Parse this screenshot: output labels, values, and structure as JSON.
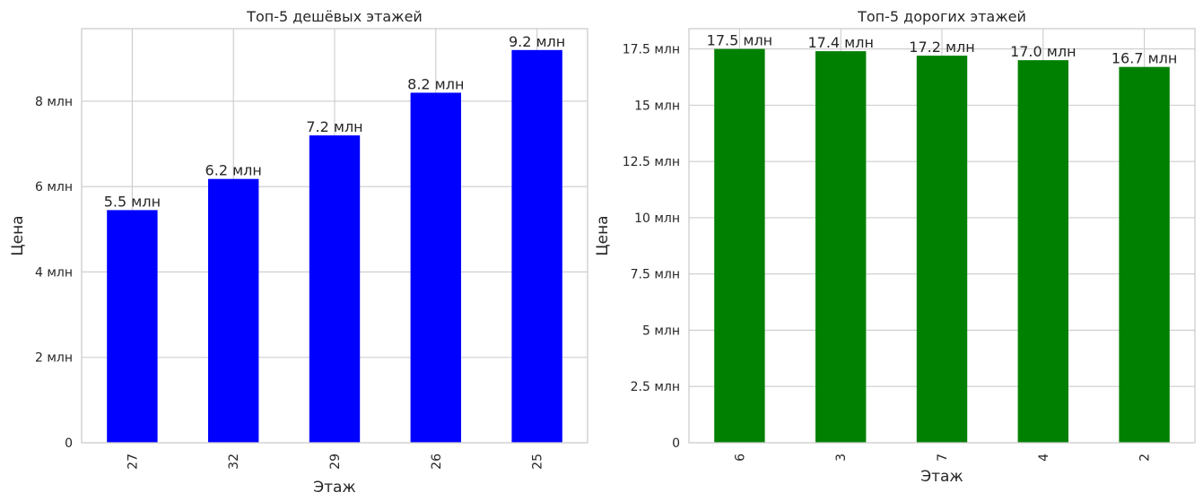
{
  "chart_data": [
    {
      "type": "bar",
      "title": "Топ-5 дешёвых этажей",
      "xlabel": "Этаж",
      "ylabel": "Цена",
      "categories": [
        "27",
        "32",
        "29",
        "26",
        "25"
      ],
      "values": [
        5.45,
        6.18,
        7.2,
        8.2,
        9.2
      ],
      "value_labels": [
        "5.5 млн",
        "6.2 млн",
        "7.2 млн",
        "8.2 млн",
        "9.2 млн"
      ],
      "ylim": [
        0,
        9.7
      ],
      "yticks": [
        0,
        2,
        4,
        6,
        8
      ],
      "ytick_labels": [
        "0",
        "2 млн",
        "4 млн",
        "6 млн",
        "8 млн"
      ],
      "color": "#0000ff",
      "grid": true
    },
    {
      "type": "bar",
      "title": "Топ-5 дорогих этажей",
      "xlabel": "Этаж",
      "ylabel": "Цена",
      "categories": [
        "6",
        "3",
        "7",
        "4",
        "2"
      ],
      "values": [
        17.5,
        17.4,
        17.2,
        17.0,
        16.7
      ],
      "value_labels": [
        "17.5 млн",
        "17.4 млн",
        "17.2 млн",
        "17.0 млн",
        "16.7 млн"
      ],
      "ylim": [
        0,
        18.4
      ],
      "yticks": [
        0,
        2.5,
        5,
        7.5,
        10,
        12.5,
        15,
        17.5
      ],
      "ytick_labels": [
        "0",
        "2.5 млн",
        "5 млн",
        "7.5 млн",
        "10 млн",
        "12.5 млн",
        "15 млн",
        "17.5 млн"
      ],
      "color": "#008000",
      "grid": true
    }
  ]
}
